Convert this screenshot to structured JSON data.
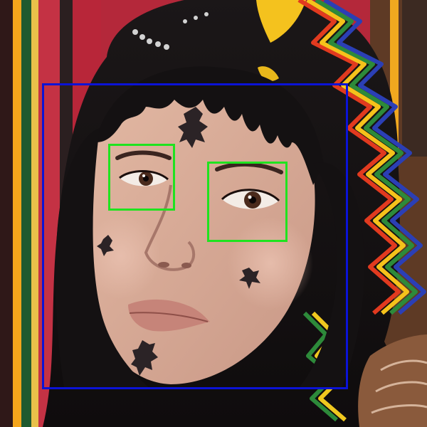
{
  "scene": {
    "kind": "photo-with-detection-overlay",
    "subject": "portrait",
    "colors": {
      "face_box": "#0b13d6",
      "eye_boxes": "#1fe31f"
    },
    "detections": [
      {
        "label": "face",
        "color": "#0b13d6"
      },
      {
        "label": "eye",
        "color": "#1fe31f"
      },
      {
        "label": "eye",
        "color": "#1fe31f"
      }
    ]
  }
}
